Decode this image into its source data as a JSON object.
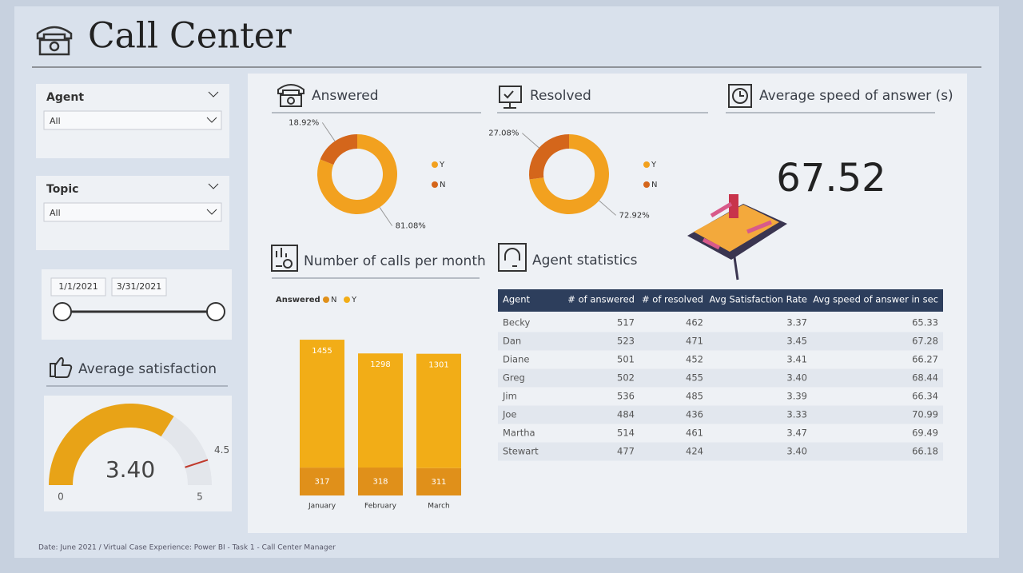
{
  "header": {
    "title": "Call Center"
  },
  "slicers": [
    {
      "label": "Agent",
      "value": "All"
    },
    {
      "label": "Topic",
      "value": "All"
    }
  ],
  "date_range": {
    "start": "1/1/2021",
    "end": "3/31/2021"
  },
  "chart_data": [
    {
      "type": "donut",
      "title": "Answered",
      "categories": [
        "Y",
        "N"
      ],
      "values": [
        81.08,
        18.92
      ],
      "value_labels": [
        "81.08%",
        "18.92%"
      ],
      "colors": [
        "#f2a11f",
        "#d4661b"
      ]
    },
    {
      "type": "donut",
      "title": "Resolved",
      "categories": [
        "Y",
        "N"
      ],
      "values": [
        72.92,
        27.08
      ],
      "value_labels": [
        "72.92%",
        "27.08%"
      ],
      "colors": [
        "#f2a11f",
        "#d4661b"
      ]
    },
    {
      "type": "stacked_bar",
      "title": "Number of calls per month",
      "legend_title": "Answered",
      "categories": [
        "January",
        "February",
        "March"
      ],
      "series": [
        {
          "name": "N",
          "color": "#e0901a",
          "values": [
            317,
            318,
            311
          ]
        },
        {
          "name": "Y",
          "color": "#f2ad17",
          "values": [
            1455,
            1298,
            1301
          ]
        }
      ],
      "ylim": [
        0,
        1800
      ]
    },
    {
      "type": "gauge",
      "title": "Average satisfaction",
      "value": 3.4,
      "value_label": "3.40",
      "target": 4.5,
      "ylim": [
        0,
        5
      ],
      "yticks": [
        0,
        5
      ],
      "color": "#e8a317"
    }
  ],
  "kpi": {
    "title": "Average speed of answer (s)",
    "value": 67.52
  },
  "table": {
    "title": "Agent statistics",
    "columns": [
      "Agent",
      "# of answered",
      "# of resolved",
      "Avg Satisfaction Rate",
      "Avg speed of answer in sec"
    ],
    "rows": [
      [
        "Becky",
        "517",
        "462",
        "3.37",
        "65.33"
      ],
      [
        "Dan",
        "523",
        "471",
        "3.45",
        "67.28"
      ],
      [
        "Diane",
        "501",
        "452",
        "3.41",
        "66.27"
      ],
      [
        "Greg",
        "502",
        "455",
        "3.40",
        "68.44"
      ],
      [
        "Jim",
        "536",
        "485",
        "3.39",
        "66.34"
      ],
      [
        "Joe",
        "484",
        "436",
        "3.33",
        "70.99"
      ],
      [
        "Martha",
        "514",
        "461",
        "3.47",
        "69.49"
      ],
      [
        "Stewart",
        "477",
        "424",
        "3.40",
        "66.18"
      ]
    ]
  },
  "footer": "Date: June 2021 / Virtual Case Experience: Power BI - Task 1 - Call Center Manager"
}
